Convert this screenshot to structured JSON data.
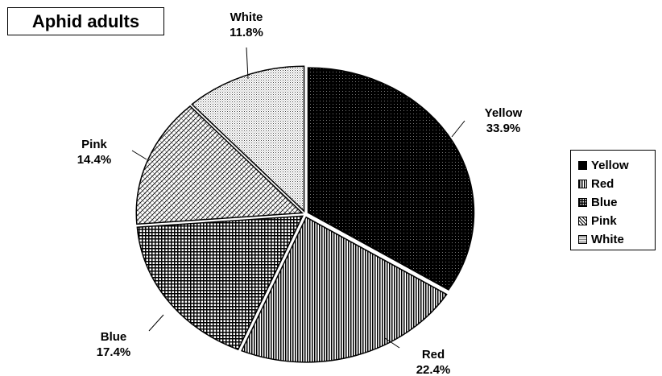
{
  "chart_data": {
    "type": "pie",
    "title": "Aphid adults",
    "slices": [
      {
        "name": "Yellow",
        "value": 33.9,
        "label": "33.9%",
        "pattern": "dots-dark"
      },
      {
        "name": "Red",
        "value": 22.4,
        "label": "22.4%",
        "pattern": "vertical-lines"
      },
      {
        "name": "Blue",
        "value": 17.4,
        "label": "17.4%",
        "pattern": "grid-checker"
      },
      {
        "name": "Pink",
        "value": 14.4,
        "label": "14.4%",
        "pattern": "brick"
      },
      {
        "name": "White",
        "value": 11.8,
        "label": "11.8%",
        "pattern": "light-dots"
      }
    ],
    "start_angle": "12 o'clock",
    "direction": "clockwise",
    "legend_position": "right"
  }
}
